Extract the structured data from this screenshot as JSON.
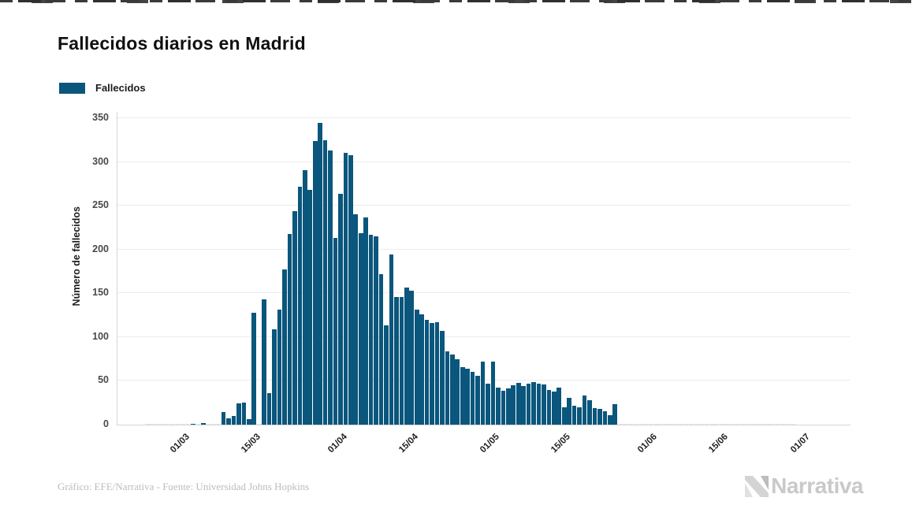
{
  "title": "Fallecidos diarios en Madrid",
  "legend": {
    "label": "Fallecidos",
    "color": "#0a567c"
  },
  "footer": {
    "credit": "Gráfico: EFE/Narrativa - Fuente: Universidad Johns Hopkins"
  },
  "branding": {
    "logo_text": "Narrativa"
  },
  "chart_data": {
    "type": "bar",
    "title": "Fallecidos diarios en Madrid",
    "xlabel": "",
    "ylabel": "Número de fallecidos",
    "ylim": [
      0,
      350
    ],
    "yticks": [
      0,
      50,
      100,
      150,
      200,
      250,
      300,
      350
    ],
    "xticks": [
      "01/03",
      "15/03",
      "01/04",
      "15/04",
      "01/05",
      "15/05",
      "01/06",
      "15/06",
      "01/07"
    ],
    "grid": true,
    "legend_position": "top-left",
    "bar_color": "#0a567c",
    "zero_bar_color": "#dfe6ea",
    "series_name": "Fallecidos",
    "dates": [
      "22/02",
      "23/02",
      "24/02",
      "25/02",
      "26/02",
      "27/02",
      "28/02",
      "29/02",
      "01/03",
      "02/03",
      "03/03",
      "04/03",
      "05/03",
      "06/03",
      "07/03",
      "08/03",
      "09/03",
      "10/03",
      "11/03",
      "12/03",
      "13/03",
      "14/03",
      "15/03",
      "16/03",
      "17/03",
      "18/03",
      "19/03",
      "20/03",
      "21/03",
      "22/03",
      "23/03",
      "24/03",
      "25/03",
      "26/03",
      "27/03",
      "28/03",
      "29/03",
      "30/03",
      "31/03",
      "01/04",
      "02/04",
      "03/04",
      "04/04",
      "05/04",
      "06/04",
      "07/04",
      "08/04",
      "09/04",
      "10/04",
      "11/04",
      "12/04",
      "13/04",
      "14/04",
      "15/04",
      "16/04",
      "17/04",
      "18/04",
      "19/04",
      "20/04",
      "21/04",
      "22/04",
      "23/04",
      "24/04",
      "25/04",
      "26/04",
      "27/04",
      "28/04",
      "29/04",
      "30/04",
      "01/05",
      "02/05",
      "03/05",
      "04/05",
      "05/05",
      "06/05",
      "07/05",
      "08/05",
      "09/05",
      "10/05",
      "11/05",
      "12/05",
      "13/05",
      "14/05",
      "15/05",
      "16/05",
      "17/05",
      "18/05",
      "19/05",
      "20/05",
      "21/05",
      "22/05",
      "23/05",
      "24/05",
      "25/05",
      "26/05",
      "27/05",
      "28/05",
      "29/05",
      "30/05",
      "31/05",
      "01/06",
      "02/06",
      "03/06",
      "04/06",
      "05/06",
      "06/06",
      "07/06",
      "08/06",
      "09/06",
      "10/06",
      "11/06",
      "12/06",
      "13/06",
      "14/06",
      "15/06",
      "16/06",
      "17/06",
      "18/06",
      "19/06",
      "20/06",
      "21/06",
      "22/06",
      "23/06",
      "24/06",
      "25/06",
      "26/06",
      "27/06",
      "28/06"
    ],
    "values": [
      0,
      0,
      0,
      0,
      0,
      0,
      0,
      0,
      0,
      1,
      0,
      2,
      0,
      0,
      0,
      14,
      7,
      10,
      24,
      25,
      6,
      128,
      0,
      143,
      36,
      109,
      131,
      177,
      218,
      244,
      272,
      291,
      268,
      324,
      345,
      325,
      313,
      213,
      264,
      310,
      308,
      240,
      219,
      237,
      217,
      215,
      172,
      113,
      194,
      146,
      146,
      157,
      153,
      131,
      126,
      120,
      116,
      117,
      107,
      84,
      80,
      75,
      66,
      64,
      60,
      56,
      72,
      47,
      72,
      42,
      39,
      41,
      45,
      48,
      44,
      47,
      49,
      47,
      46,
      40,
      38,
      42,
      20,
      31,
      22,
      20,
      33,
      28,
      19,
      18,
      15,
      11,
      23,
      0,
      0,
      0,
      0,
      0,
      0,
      0,
      0,
      0,
      0,
      0,
      0,
      0,
      0,
      0,
      0,
      0,
      0,
      0,
      0,
      0,
      0,
      0,
      0,
      0,
      0,
      0,
      0,
      0,
      0,
      0,
      0,
      0,
      0,
      0
    ]
  }
}
